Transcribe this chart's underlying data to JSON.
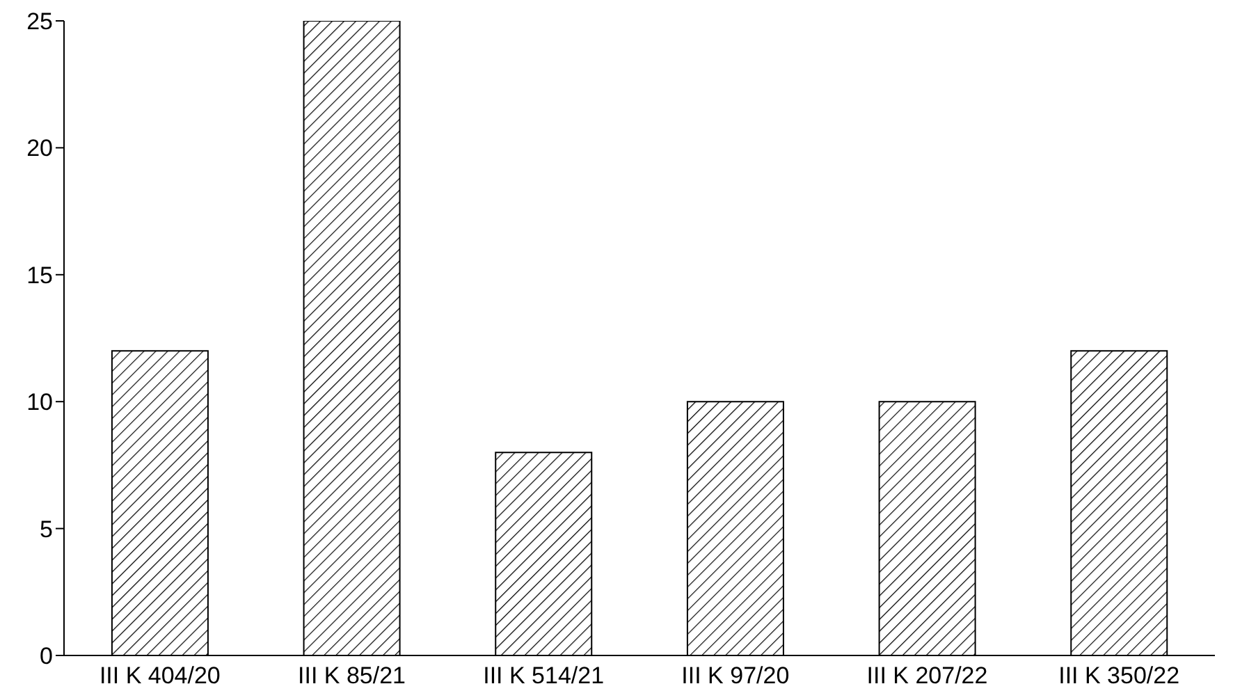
{
  "chart_data": {
    "type": "bar",
    "categories": [
      "III K 404/20",
      "III K 85/21",
      "III K 514/21",
      "III K 97/20",
      "III K 207/22",
      "III K 350/22"
    ],
    "values": [
      12,
      25,
      8,
      10,
      10,
      12
    ],
    "color": "#000000",
    "ylim": [
      0,
      25
    ],
    "yticks": [
      0,
      5,
      10,
      15,
      20,
      25
    ],
    "grid": false
  }
}
